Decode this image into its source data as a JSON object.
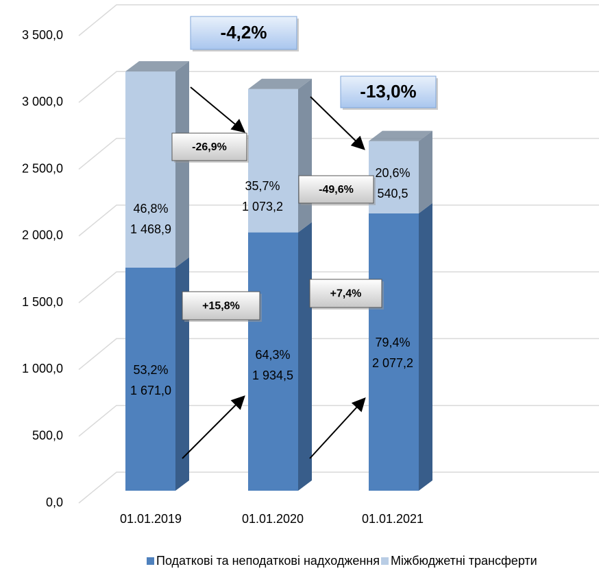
{
  "chart_data": {
    "type": "bar3d_stacked",
    "categories": [
      "01.01.2019",
      "01.01.2020",
      "01.01.2021"
    ],
    "series": [
      {
        "name": "Податкові та неподаткові надходження",
        "color": "#4f81bd",
        "side_color": "#385d8a",
        "values": [
          1671.0,
          1934.5,
          2077.2
        ],
        "value_labels": [
          "1 671,0",
          "1 934,5",
          "2 077,2"
        ],
        "share_labels": [
          "53,2%",
          "64,3%",
          "79,4%"
        ]
      },
      {
        "name": "Міжбюджетні трансферти",
        "color": "#b9cde5",
        "side_color": "#7f8fa1",
        "values": [
          1468.9,
          1073.2,
          540.5
        ],
        "value_labels": [
          "1 468,9",
          "1 073,2",
          "540,5"
        ],
        "share_labels": [
          "46,8%",
          "35,7%",
          "20,6%"
        ]
      }
    ],
    "ylim": [
      0,
      3500
    ],
    "yticks": [
      {
        "value": 0,
        "label": "0,0"
      },
      {
        "value": 500,
        "label": "500,0"
      },
      {
        "value": 1000,
        "label": "1 000,0"
      },
      {
        "value": 1500,
        "label": "1 500,0"
      },
      {
        "value": 2000,
        "label": "2 000,0"
      },
      {
        "value": 2500,
        "label": "2 500,0"
      },
      {
        "value": 3000,
        "label": "3 000,0"
      },
      {
        "value": 3500,
        "label": "3 500,0"
      }
    ],
    "grid": true,
    "annotations": [
      {
        "text": "-4,2%",
        "style": "total"
      },
      {
        "text": "-13,0%",
        "style": "total"
      },
      {
        "text": "-26,9%",
        "style": "segment"
      },
      {
        "text": "-49,6%",
        "style": "segment"
      },
      {
        "text": "+15,8%",
        "style": "segment"
      },
      {
        "text": "+7,4%",
        "style": "segment"
      }
    ]
  }
}
